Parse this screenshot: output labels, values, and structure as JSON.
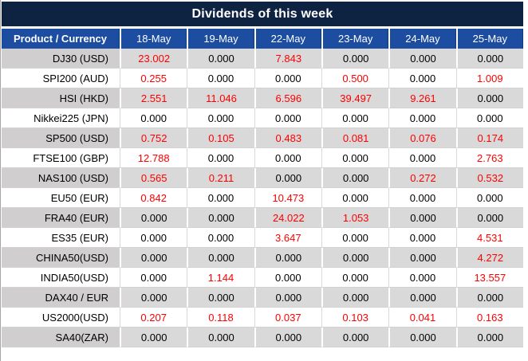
{
  "title": "Dividends of this week",
  "table": {
    "header": {
      "product_column": "Product / Currency",
      "date_columns": [
        "18-May",
        "19-May",
        "22-May",
        "23-May",
        "24-May",
        "25-May"
      ]
    },
    "rows": [
      {
        "label": "DJ30 (USD)",
        "values": [
          "23.002",
          "0.000",
          "7.843",
          "0.000",
          "0.000",
          "0.000"
        ]
      },
      {
        "label": "SPI200 (AUD)",
        "values": [
          "0.255",
          "0.000",
          "0.000",
          "0.500",
          "0.000",
          "1.009"
        ]
      },
      {
        "label": "HSI (HKD)",
        "values": [
          "2.551",
          "11.046",
          "6.596",
          "39.497",
          "9.261",
          "0.000"
        ]
      },
      {
        "label": "Nikkei225 (JPN)",
        "values": [
          "0.000",
          "0.000",
          "0.000",
          "0.000",
          "0.000",
          "0.000"
        ]
      },
      {
        "label": "SP500 (USD)",
        "values": [
          "0.752",
          "0.105",
          "0.483",
          "0.081",
          "0.076",
          "0.174"
        ]
      },
      {
        "label": "FTSE100 (GBP)",
        "values": [
          "12.788",
          "0.000",
          "0.000",
          "0.000",
          "0.000",
          "2.763"
        ]
      },
      {
        "label": "NAS100 (USD)",
        "values": [
          "0.565",
          "0.211",
          "0.000",
          "0.000",
          "0.272",
          "0.532"
        ]
      },
      {
        "label": "EU50 (EUR)",
        "values": [
          "0.842",
          "0.000",
          "10.473",
          "0.000",
          "0.000",
          "0.000"
        ]
      },
      {
        "label": "FRA40 (EUR)",
        "values": [
          "0.000",
          "0.000",
          "24.022",
          "1.053",
          "0.000",
          "0.000"
        ]
      },
      {
        "label": "ES35 (EUR)",
        "values": [
          "0.000",
          "0.000",
          "3.647",
          "0.000",
          "0.000",
          "4.531"
        ]
      },
      {
        "label": "CHINA50(USD)",
        "values": [
          "0.000",
          "0.000",
          "0.000",
          "0.000",
          "0.000",
          "4.272"
        ]
      },
      {
        "label": "INDIA50(USD)",
        "values": [
          "0.000",
          "1.144",
          "0.000",
          "0.000",
          "0.000",
          "13.557"
        ]
      },
      {
        "label": "DAX40 / EUR",
        "values": [
          "0.000",
          "0.000",
          "0.000",
          "0.000",
          "0.000",
          "0.000"
        ]
      },
      {
        "label": "US2000(USD)",
        "values": [
          "0.207",
          "0.118",
          "0.037",
          "0.103",
          "0.041",
          "0.163"
        ]
      },
      {
        "label": "SA40(ZAR)",
        "values": [
          "0.000",
          "0.000",
          "0.000",
          "0.000",
          "0.000",
          "0.000"
        ]
      }
    ],
    "zero_value": "0.000"
  },
  "colors": {
    "title_bar": "#0e2341",
    "header_row": "#1c4da1",
    "stripe_value_bg": "#d9d9d9",
    "stripe_label_bg": "#d0cece",
    "value_nonzero": "#fe0000",
    "value_zero": "#000000"
  }
}
